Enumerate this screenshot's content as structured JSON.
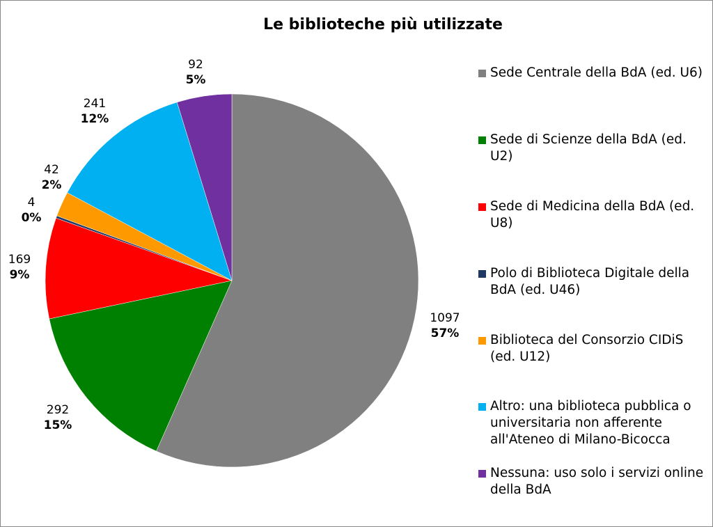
{
  "chart_data": {
    "type": "pie",
    "title": "Le biblioteche più utilizzate",
    "categories": [
      "Sede Centrale della BdA (ed. U6)",
      "Sede di Scienze della BdA (ed. U2)",
      "Sede di Medicina della BdA (ed. U8)",
      "Polo di Biblioteca Digitale della BdA (ed. U46)",
      "Biblioteca del Consorzio CIDiS (ed. U12)",
      "Altro: una biblioteca pubblica o universitaria non afferente all'Ateneo di Milano-Bicocca",
      "Nessuna: uso solo i servizi online della BdA"
    ],
    "values": [
      1097,
      292,
      169,
      4,
      42,
      241,
      92
    ],
    "percentages": [
      57,
      15,
      9,
      0,
      2,
      12,
      5
    ],
    "percentage_labels": [
      "57%",
      "15%",
      "9%",
      "0%",
      "2%",
      "12%",
      "5%"
    ],
    "colors": [
      "#808080",
      "#008000",
      "#ff0000",
      "#1f3864",
      "#ff9900",
      "#00b0f0",
      "#7030a0"
    ],
    "legend": "right"
  }
}
